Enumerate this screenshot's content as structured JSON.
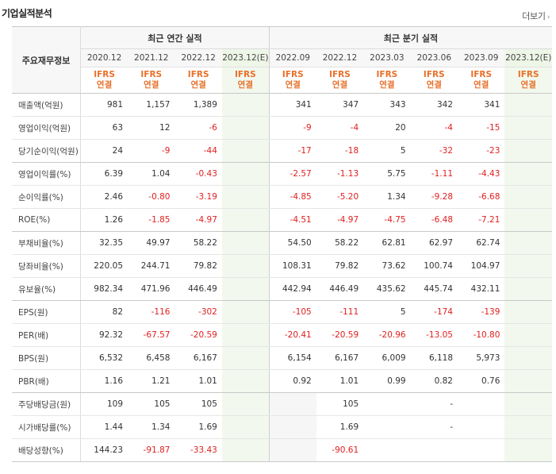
{
  "title": "기업실적분석",
  "more": {
    "label": "더보기",
    "chevron": "›"
  },
  "headers": {
    "row_label": "주요재무정보",
    "annual_title": "최근 연간 실적",
    "quarter_title": "최근 분기 실적",
    "annual_periods": [
      "2020.12",
      "2021.12",
      "2022.12",
      "2023.12(E)"
    ],
    "quarter_periods": [
      "2022.09",
      "2022.12",
      "2023.03",
      "2023.06",
      "2023.09",
      "2023.12(E)"
    ],
    "standard_line1": "IFRS",
    "standard_line2": "연결"
  },
  "colors": {
    "negative": "#e02020",
    "accent": "#e8702a",
    "estimate_bg": "#f2f8ed"
  },
  "rows": [
    {
      "label": "매출액(억원)",
      "annual": [
        "981",
        "1,157",
        "1,389",
        ""
      ],
      "quarter": [
        "341",
        "347",
        "343",
        "342",
        "341",
        ""
      ]
    },
    {
      "label": "영업이익(억원)",
      "annual": [
        "63",
        "12",
        "-6",
        ""
      ],
      "quarter": [
        "-9",
        "-4",
        "20",
        "-4",
        "-15",
        ""
      ]
    },
    {
      "label": "당기순이익(억원)",
      "annual": [
        "24",
        "-9",
        "-44",
        ""
      ],
      "quarter": [
        "-17",
        "-18",
        "5",
        "-32",
        "-23",
        ""
      ]
    },
    {
      "label": "영업이익률(%)",
      "annual": [
        "6.39",
        "1.04",
        "-0.43",
        ""
      ],
      "quarter": [
        "-2.57",
        "-1.13",
        "5.75",
        "-1.11",
        "-4.43",
        ""
      ]
    },
    {
      "label": "순이익률(%)",
      "annual": [
        "2.46",
        "-0.80",
        "-3.19",
        ""
      ],
      "quarter": [
        "-4.85",
        "-5.20",
        "1.34",
        "-9.28",
        "-6.68",
        ""
      ]
    },
    {
      "label": "ROE(%)",
      "annual": [
        "1.26",
        "-1.85",
        "-4.97",
        ""
      ],
      "quarter": [
        "-4.51",
        "-4.97",
        "-4.75",
        "-6.48",
        "-7.21",
        ""
      ]
    },
    {
      "label": "부채비율(%)",
      "annual": [
        "32.35",
        "49.97",
        "58.22",
        ""
      ],
      "quarter": [
        "54.50",
        "58.22",
        "62.81",
        "62.97",
        "62.74",
        ""
      ]
    },
    {
      "label": "당좌비율(%)",
      "annual": [
        "220.05",
        "244.71",
        "79.82",
        ""
      ],
      "quarter": [
        "108.31",
        "79.82",
        "73.62",
        "100.74",
        "104.97",
        ""
      ]
    },
    {
      "label": "유보율(%)",
      "annual": [
        "982.34",
        "471.96",
        "446.49",
        ""
      ],
      "quarter": [
        "442.94",
        "446.49",
        "435.62",
        "445.74",
        "432.11",
        ""
      ]
    },
    {
      "label": "EPS(원)",
      "annual": [
        "82",
        "-116",
        "-302",
        ""
      ],
      "quarter": [
        "-105",
        "-111",
        "5",
        "-174",
        "-139",
        ""
      ]
    },
    {
      "label": "PER(배)",
      "annual": [
        "92.32",
        "-67.57",
        "-20.59",
        ""
      ],
      "quarter": [
        "-20.41",
        "-20.59",
        "-20.96",
        "-13.05",
        "-10.80",
        ""
      ]
    },
    {
      "label": "BPS(원)",
      "annual": [
        "6,532",
        "6,458",
        "6,167",
        ""
      ],
      "quarter": [
        "6,154",
        "6,167",
        "6,009",
        "6,118",
        "5,973",
        ""
      ]
    },
    {
      "label": "PBR(배)",
      "annual": [
        "1.16",
        "1.21",
        "1.01",
        ""
      ],
      "quarter": [
        "0.92",
        "1.01",
        "0.99",
        "0.82",
        "0.76",
        ""
      ]
    },
    {
      "label": "주당배당금(원)",
      "annual": [
        "109",
        "105",
        "105",
        ""
      ],
      "quarter": [
        "",
        "105",
        "",
        "-",
        "",
        ""
      ]
    },
    {
      "label": "시가배당률(%)",
      "annual": [
        "1.44",
        "1.34",
        "1.69",
        ""
      ],
      "quarter": [
        "",
        "1.69",
        "",
        "-",
        "",
        ""
      ]
    },
    {
      "label": "배당성향(%)",
      "annual": [
        "144.23",
        "-91.87",
        "-33.43",
        ""
      ],
      "quarter": [
        "",
        "-90.61",
        "",
        "",
        "",
        ""
      ]
    }
  ]
}
